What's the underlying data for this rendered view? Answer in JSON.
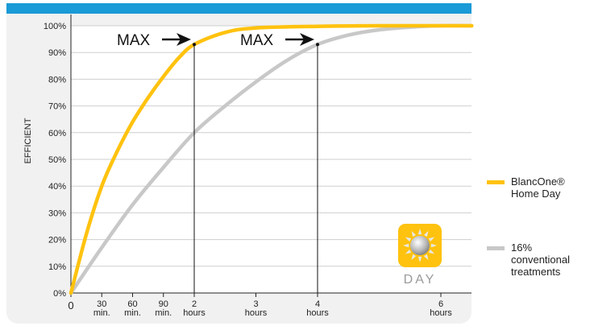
{
  "chart_data": {
    "type": "line",
    "title": "",
    "ylabel": "EFFICIENT",
    "xlabel": "",
    "y_ticks": [
      "0%",
      "10%",
      "20%",
      "30%",
      "40%",
      "50%",
      "60%",
      "70%",
      "80%",
      "90%",
      "100%"
    ],
    "ylim": [
      0,
      100
    ],
    "xlim_hours": [
      0,
      6.5
    ],
    "x_ticks": [
      {
        "value": 0,
        "line1": "0",
        "line2": ""
      },
      {
        "value": 0.5,
        "line1": "30",
        "line2": "min."
      },
      {
        "value": 1.0,
        "line1": "60",
        "line2": "min."
      },
      {
        "value": 1.5,
        "line1": "90",
        "line2": "min."
      },
      {
        "value": 2,
        "line1": "2",
        "line2": "hours"
      },
      {
        "value": 3,
        "line1": "3",
        "line2": "hours"
      },
      {
        "value": 4,
        "line1": "4",
        "line2": "hours"
      },
      {
        "value": 6,
        "line1": "6",
        "line2": "hours"
      }
    ],
    "grid": true,
    "series": [
      {
        "name": "BlancOne® Home Day",
        "color": "#FFC20E",
        "x": [
          0,
          0.25,
          0.5,
          0.75,
          1.0,
          1.25,
          1.5,
          1.75,
          2.0,
          2.5,
          3.0,
          4.0,
          5.0,
          6.0,
          6.5
        ],
        "y": [
          0,
          22,
          40,
          53,
          64,
          73,
          81,
          88,
          93,
          97.5,
          99.2,
          99.8,
          100,
          100,
          100
        ]
      },
      {
        "name": "16% conventional treatments",
        "color": "#C8C8C8",
        "x": [
          0,
          0.5,
          1.0,
          1.5,
          2.0,
          2.5,
          3.0,
          3.5,
          4.0,
          4.5,
          5.0,
          5.5,
          6.0,
          6.5
        ],
        "y": [
          0,
          17,
          33,
          47,
          60,
          70,
          79,
          87,
          93,
          96.5,
          98.5,
          99.5,
          100,
          100
        ]
      }
    ],
    "annotations": [
      {
        "text": "MAX",
        "x": 2,
        "y": 93
      },
      {
        "text": "MAX",
        "x": 4,
        "y": 93
      }
    ],
    "badge": {
      "text": "DAY",
      "icon": "sun-icon",
      "color": "#FFC20E"
    },
    "header_bar_color": "#1A9AD6",
    "legend_placement": "right"
  }
}
